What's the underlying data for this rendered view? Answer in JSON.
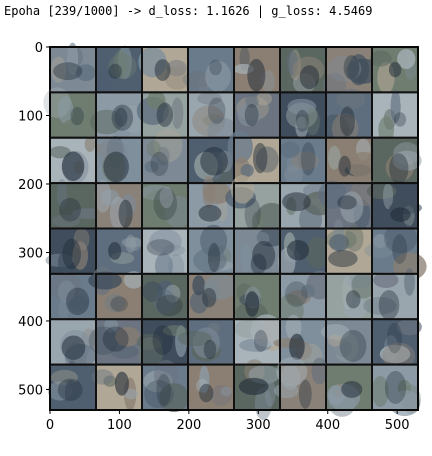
{
  "log": {
    "epoch_label": "Epoha",
    "epoch_current": 239,
    "epoch_total": 1000,
    "d_loss_label": "d_loss",
    "d_loss": "1.1626",
    "g_loss_label": "g_loss",
    "g_loss": "4.5469",
    "text": "Epoha [239/1000] -> d_loss: 1.1626 | g_loss: 4.5469"
  },
  "chart_data": {
    "type": "image-grid",
    "title": "",
    "xlabel": "",
    "ylabel": "",
    "xlim": [
      0,
      530
    ],
    "ylim": [
      530,
      0
    ],
    "xticks": [
      0,
      100,
      200,
      300,
      400,
      500
    ],
    "yticks": [
      0,
      100,
      200,
      300,
      400,
      500
    ],
    "grid_rows": 8,
    "grid_cols": 8,
    "grid": false
  },
  "palette": {
    "cell_border": "#111111",
    "tile_colors": [
      "#7d8a96",
      "#5e6e7e",
      "#9aa6ae",
      "#6e7d70",
      "#8a7f72",
      "#4f5f70",
      "#a9b3ba",
      "#6b7480",
      "#8b9aa5",
      "#5a6660",
      "#b0a796",
      "#7f8f9c",
      "#3f4d5c",
      "#96a2a0",
      "#8a8178",
      "#6a7b8c"
    ]
  }
}
